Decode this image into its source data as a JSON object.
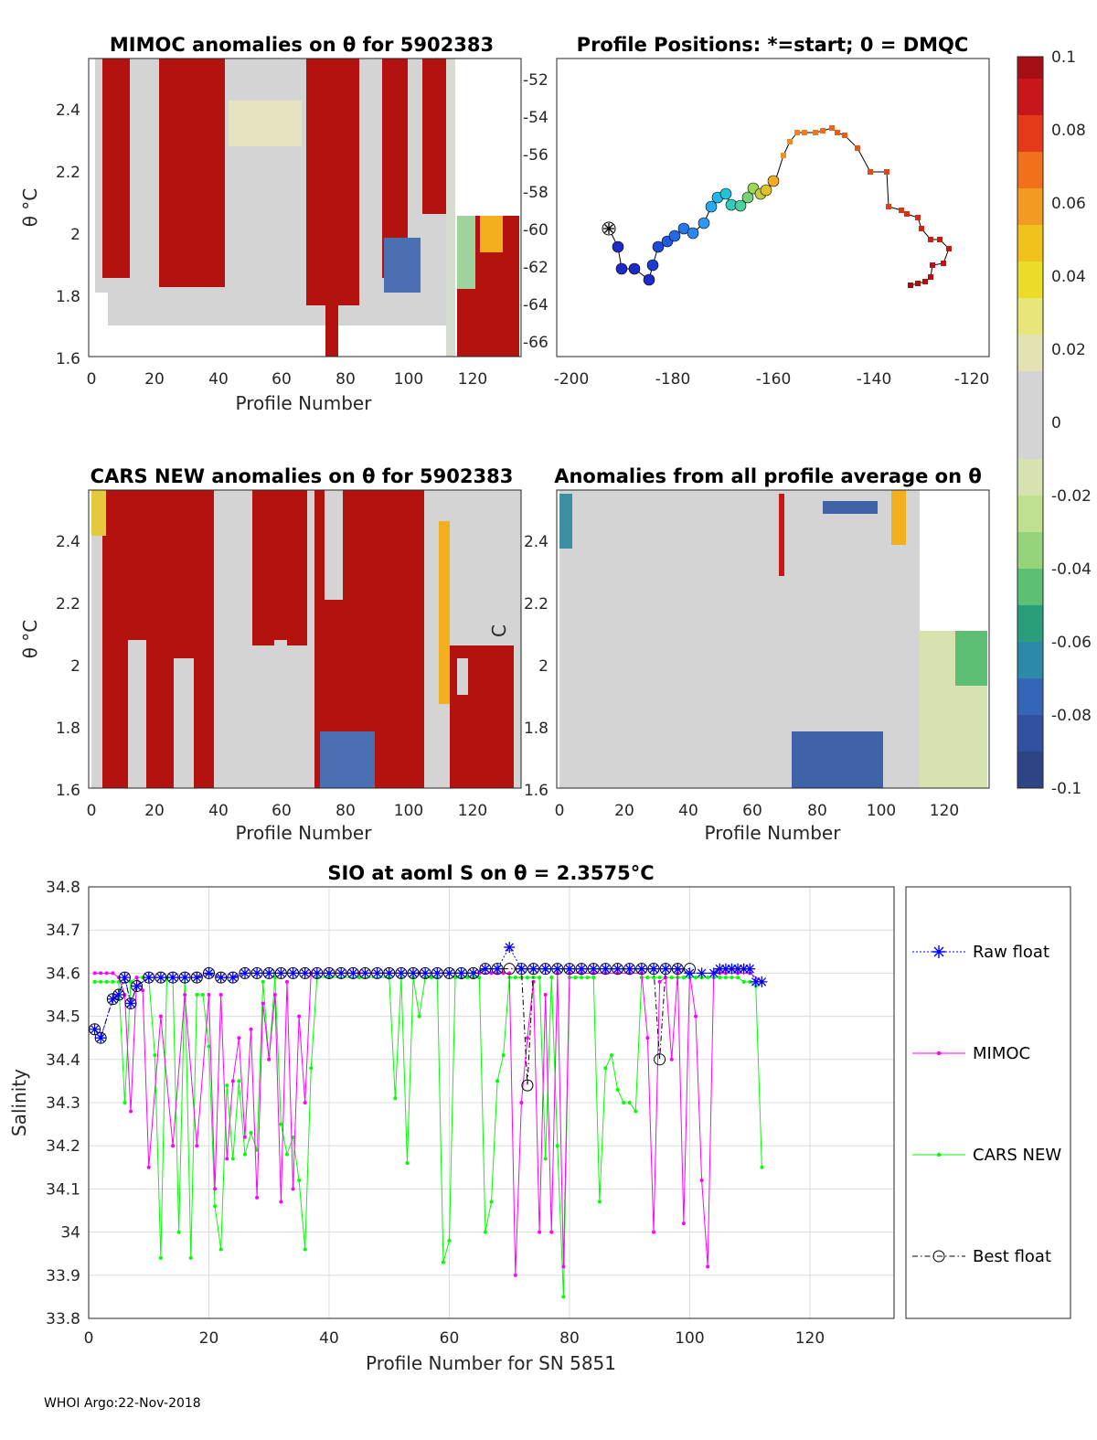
{
  "footer": "WHOI Argo:22-Nov-2018",
  "panels": {
    "mimoc": {
      "title": "MIMOC anomalies on θ  for 5902383",
      "xlabel": "Profile Number",
      "ylabel": "θ °C",
      "xticks": [
        "0",
        "20",
        "40",
        "60",
        "80",
        "100",
        "120"
      ],
      "yticks": [
        "1.6",
        "1.8",
        "2",
        "2.2",
        "2.4"
      ]
    },
    "positions": {
      "title": "Profile Positions: *=start; 0 = DMQC",
      "xticks": [
        "-200",
        "-180",
        "-160",
        "-140",
        "-120"
      ],
      "yticks": [
        "-52",
        "-54",
        "-56",
        "-58",
        "-60",
        "-62",
        "-64",
        "-66"
      ]
    },
    "cars": {
      "title": "CARS NEW anomalies on θ for 5902383",
      "xlabel": "Profile Number",
      "ylabel": "θ °C",
      "ylabel_partial": "C",
      "xticks": [
        "0",
        "20",
        "40",
        "60",
        "80",
        "100",
        "120"
      ],
      "yticks": [
        "1.6",
        "1.8",
        "2",
        "2.2",
        "2.4"
      ]
    },
    "average": {
      "title": "Anomalies from all profile average on θ",
      "xlabel": "Profile Number",
      "xticks": [
        "0",
        "20",
        "40",
        "60",
        "80",
        "100",
        "120"
      ],
      "yticks": [
        "1.6",
        "1.8",
        "2",
        "2.2",
        "2.4"
      ]
    }
  },
  "colorbar": {
    "ticks": [
      "0.1",
      "0.08",
      "0.06",
      "0.04",
      "0.02",
      "0",
      "-0.02",
      "-0.04",
      "-0.06",
      "-0.08",
      "-0.1"
    ]
  },
  "chart_data": {
    "type": "line",
    "title": "SIO at aoml S on θ = 2.3575°C",
    "xlabel": "Profile Number for SN 5851",
    "ylabel": "Salinity",
    "xlim": [
      0,
      134
    ],
    "ylim": [
      33.8,
      34.8
    ],
    "xticks": [
      "0",
      "20",
      "40",
      "60",
      "80",
      "100",
      "120"
    ],
    "yticks": [
      "33.8",
      "33.9",
      "34",
      "34.1",
      "34.2",
      "34.3",
      "34.4",
      "34.5",
      "34.6",
      "34.7",
      "34.8"
    ],
    "series": [
      {
        "name": "Raw float",
        "color": "#0000ff",
        "x": [
          1,
          2,
          4,
          5,
          6,
          7,
          8,
          10,
          12,
          14,
          16,
          18,
          20,
          22,
          24,
          26,
          28,
          30,
          32,
          34,
          36,
          38,
          40,
          42,
          44,
          46,
          48,
          50,
          52,
          54,
          56,
          58,
          60,
          62,
          64,
          66,
          68,
          70,
          72,
          74,
          76,
          78,
          80,
          82,
          84,
          86,
          88,
          90,
          92,
          94,
          96,
          98,
          100,
          102,
          104,
          105,
          106,
          107,
          108,
          109,
          110,
          111,
          112
        ],
        "y": [
          34.47,
          34.45,
          34.54,
          34.55,
          34.59,
          34.53,
          34.57,
          34.59,
          34.59,
          34.59,
          34.59,
          34.59,
          34.6,
          34.59,
          34.59,
          34.6,
          34.6,
          34.6,
          34.6,
          34.6,
          34.6,
          34.6,
          34.6,
          34.6,
          34.6,
          34.6,
          34.6,
          34.6,
          34.6,
          34.6,
          34.6,
          34.6,
          34.6,
          34.6,
          34.6,
          34.61,
          34.61,
          34.66,
          34.61,
          34.61,
          34.61,
          34.61,
          34.61,
          34.61,
          34.61,
          34.61,
          34.61,
          34.61,
          34.61,
          34.61,
          34.61,
          34.61,
          34.6,
          34.6,
          34.6,
          34.61,
          34.61,
          34.61,
          34.61,
          34.61,
          34.61,
          34.58,
          34.58
        ]
      },
      {
        "name": "MIMOC",
        "color": "#ff00ff",
        "x": [
          1,
          2,
          3,
          4,
          5,
          6,
          7,
          8,
          9,
          10,
          12,
          14,
          16,
          18,
          20,
          21,
          22,
          23,
          24,
          25,
          26,
          27,
          28,
          29,
          30,
          31,
          32,
          33,
          34,
          35,
          36,
          37,
          38,
          40,
          45,
          50,
          55,
          60,
          65,
          67,
          68,
          69,
          70,
          71,
          72,
          73,
          74,
          75,
          76,
          77,
          78,
          79,
          80,
          82,
          84,
          86,
          88,
          90,
          92,
          93,
          94,
          95,
          96,
          97,
          98,
          99,
          100,
          101,
          102,
          103,
          104,
          105,
          106,
          108,
          110,
          112
        ],
        "y": [
          34.6,
          34.6,
          34.6,
          34.6,
          34.59,
          34.55,
          34.28,
          34.59,
          34.56,
          34.15,
          34.5,
          34.2,
          34.55,
          34.2,
          34.55,
          34.1,
          34.55,
          34.17,
          34.35,
          34.45,
          34.22,
          34.47,
          34.08,
          34.53,
          34.4,
          34.55,
          34.07,
          34.58,
          34.1,
          34.5,
          34.3,
          34.6,
          34.6,
          34.6,
          34.6,
          34.6,
          34.6,
          34.6,
          34.6,
          34.6,
          34.6,
          34.6,
          34.6,
          33.9,
          34.3,
          34.45,
          34.58,
          34.0,
          34.55,
          34.0,
          34.6,
          33.92,
          34.6,
          34.6,
          34.6,
          34.6,
          34.6,
          34.6,
          34.6,
          34.45,
          34.0,
          34.58,
          34.59,
          34.4,
          34.6,
          34.02,
          34.6,
          34.5,
          34.12,
          33.92,
          34.6,
          34.6,
          34.6,
          34.6,
          34.6,
          34.58
        ]
      },
      {
        "name": "CARS NEW",
        "color": "#00ff00",
        "x": [
          1,
          2,
          3,
          4,
          5,
          6,
          7,
          8,
          9,
          10,
          11,
          12,
          13,
          14,
          15,
          16,
          17,
          18,
          19,
          20,
          21,
          22,
          23,
          24,
          25,
          26,
          27,
          28,
          29,
          30,
          31,
          32,
          33,
          34,
          35,
          36,
          37,
          38,
          40,
          45,
          50,
          51,
          52,
          53,
          54,
          55,
          56,
          57,
          58,
          59,
          60,
          61,
          62,
          63,
          64,
          65,
          66,
          67,
          68,
          69,
          70,
          71,
          72,
          73,
          74,
          75,
          76,
          77,
          78,
          79,
          80,
          81,
          82,
          83,
          84,
          85,
          86,
          87,
          88,
          89,
          90,
          91,
          92,
          93,
          94,
          95,
          96,
          97,
          98,
          99,
          100,
          101,
          102,
          103,
          104,
          105,
          106,
          107,
          108,
          109,
          110,
          111,
          112
        ],
        "y": [
          34.58,
          34.58,
          34.58,
          34.58,
          34.58,
          34.3,
          34.58,
          34.59,
          34.59,
          34.59,
          34.41,
          33.94,
          34.59,
          34.59,
          34.0,
          34.59,
          33.94,
          34.55,
          34.55,
          34.43,
          34.06,
          33.96,
          34.34,
          34.17,
          34.35,
          34.18,
          34.23,
          34.19,
          34.58,
          34.4,
          34.59,
          34.25,
          34.18,
          34.22,
          34.12,
          33.96,
          34.38,
          34.59,
          34.59,
          34.59,
          34.59,
          34.31,
          34.59,
          34.16,
          34.59,
          34.5,
          34.59,
          34.59,
          34.59,
          33.93,
          33.98,
          34.59,
          34.59,
          34.59,
          34.59,
          34.59,
          34.0,
          34.07,
          34.35,
          34.41,
          34.59,
          34.59,
          34.59,
          34.59,
          34.59,
          34.59,
          34.17,
          34.59,
          34.2,
          33.85,
          34.59,
          34.59,
          34.59,
          34.59,
          34.59,
          34.07,
          34.38,
          34.41,
          34.33,
          34.3,
          34.3,
          34.28,
          34.59,
          34.59,
          34.59,
          34.59,
          34.59,
          34.59,
          34.59,
          34.59,
          34.59,
          34.59,
          34.59,
          34.59,
          34.59,
          34.59,
          34.59,
          34.59,
          34.59,
          34.58,
          34.58,
          34.57,
          34.15
        ]
      },
      {
        "name": "Best float",
        "color": "#000000",
        "x": [
          1,
          2,
          4,
          5,
          6,
          7,
          8,
          10,
          12,
          14,
          16,
          18,
          20,
          22,
          24,
          26,
          28,
          30,
          32,
          34,
          36,
          38,
          40,
          42,
          44,
          46,
          48,
          50,
          52,
          54,
          56,
          58,
          60,
          62,
          64,
          66,
          68,
          70,
          72,
          73,
          74,
          76,
          78,
          80,
          82,
          84,
          86,
          88,
          90,
          92,
          94,
          95,
          96,
          98,
          100
        ],
        "y": [
          34.47,
          34.45,
          34.54,
          34.55,
          34.59,
          34.53,
          34.57,
          34.59,
          34.59,
          34.59,
          34.59,
          34.59,
          34.6,
          34.59,
          34.59,
          34.6,
          34.6,
          34.6,
          34.6,
          34.6,
          34.6,
          34.6,
          34.6,
          34.6,
          34.6,
          34.6,
          34.6,
          34.6,
          34.6,
          34.6,
          34.6,
          34.6,
          34.6,
          34.6,
          34.6,
          34.61,
          34.61,
          34.61,
          34.61,
          34.34,
          34.61,
          34.61,
          34.61,
          34.61,
          34.61,
          34.61,
          34.61,
          34.61,
          34.61,
          34.61,
          34.61,
          34.4,
          34.61,
          34.61,
          34.61
        ]
      }
    ]
  }
}
